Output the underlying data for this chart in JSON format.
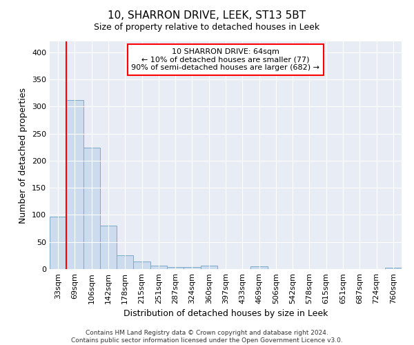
{
  "title": "10, SHARRON DRIVE, LEEK, ST13 5BT",
  "subtitle": "Size of property relative to detached houses in Leek",
  "xlabel": "Distribution of detached houses by size in Leek",
  "ylabel": "Number of detached properties",
  "bar_labels": [
    "33sqm",
    "69sqm",
    "106sqm",
    "142sqm",
    "178sqm",
    "215sqm",
    "251sqm",
    "287sqm",
    "324sqm",
    "360sqm",
    "397sqm",
    "433sqm",
    "469sqm",
    "506sqm",
    "542sqm",
    "578sqm",
    "615sqm",
    "651sqm",
    "687sqm",
    "724sqm",
    "760sqm"
  ],
  "bar_values": [
    97,
    312,
    224,
    80,
    25,
    14,
    6,
    4,
    4,
    6,
    0,
    0,
    5,
    0,
    0,
    0,
    0,
    0,
    0,
    0,
    3
  ],
  "bar_color": "#ccdcee",
  "bar_edge_color": "#7aaac8",
  "annotation_text": "10 SHARRON DRIVE: 64sqm\n← 10% of detached houses are smaller (77)\n90% of semi-detached houses are larger (682) →",
  "annotation_box_color": "white",
  "annotation_box_edge_color": "red",
  "vline_color": "red",
  "ylim": [
    0,
    420
  ],
  "yticks": [
    0,
    50,
    100,
    150,
    200,
    250,
    300,
    350,
    400
  ],
  "footer_line1": "Contains HM Land Registry data © Crown copyright and database right 2024.",
  "footer_line2": "Contains public sector information licensed under the Open Government Licence v3.0.",
  "bg_color": "#ffffff",
  "plot_bg_color": "#e8ecf4",
  "grid_color": "white",
  "title_fontsize": 11,
  "tick_fontsize": 8,
  "ylabel_fontsize": 9,
  "xlabel_fontsize": 9,
  "footer_fontsize": 6.5,
  "annotation_fontsize": 8
}
